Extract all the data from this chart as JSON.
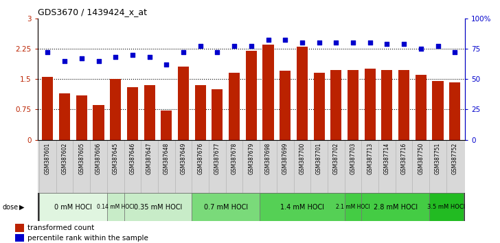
{
  "title": "GDS3670 / 1439424_x_at",
  "samples": [
    "GSM387601",
    "GSM387602",
    "GSM387605",
    "GSM387606",
    "GSM387645",
    "GSM387646",
    "GSM387647",
    "GSM387648",
    "GSM387649",
    "GSM387676",
    "GSM387677",
    "GSM387678",
    "GSM387679",
    "GSM387698",
    "GSM387699",
    "GSM387700",
    "GSM387701",
    "GSM387702",
    "GSM387703",
    "GSM387713",
    "GSM387714",
    "GSM387716",
    "GSM387750",
    "GSM387751",
    "GSM387752"
  ],
  "transformed_count": [
    1.55,
    1.15,
    1.1,
    0.85,
    1.5,
    1.3,
    1.35,
    0.72,
    1.8,
    1.35,
    1.25,
    1.65,
    2.2,
    2.35,
    1.7,
    2.3,
    1.65,
    1.72,
    1.72,
    1.75,
    1.72,
    1.72,
    1.6,
    1.45,
    1.42
  ],
  "percentile_rank": [
    72,
    65,
    67,
    65,
    68,
    70,
    68,
    62,
    72,
    77,
    72,
    77,
    77,
    82,
    82,
    80,
    80,
    80,
    80,
    80,
    79,
    79,
    75,
    77,
    72
  ],
  "dose_groups": [
    {
      "label": "0 mM HOCl",
      "start": 0,
      "end": 4,
      "color": "#e0f5e0"
    },
    {
      "label": "0.14 mM HOCl",
      "start": 4,
      "end": 5,
      "color": "#c8ecc8"
    },
    {
      "label": "0.35 mM HOCl",
      "start": 5,
      "end": 9,
      "color": "#c8ecc8"
    },
    {
      "label": "0.7 mM HOCl",
      "start": 9,
      "end": 13,
      "color": "#7ada7a"
    },
    {
      "label": "1.4 mM HOCl",
      "start": 13,
      "end": 18,
      "color": "#55d055"
    },
    {
      "label": "2.1 mM HOCl",
      "start": 18,
      "end": 19,
      "color": "#44cc44"
    },
    {
      "label": "2.8 mM HOCl",
      "start": 19,
      "end": 23,
      "color": "#44cc44"
    },
    {
      "label": "3.5 mM HOCl",
      "start": 23,
      "end": 25,
      "color": "#22bb22"
    }
  ],
  "bar_color": "#bb2200",
  "scatter_color": "#0000cc",
  "ylim_left": [
    0,
    3
  ],
  "ylim_right": [
    0,
    100
  ],
  "yticks_left": [
    0,
    0.75,
    1.5,
    2.25,
    3
  ],
  "yticks_right": [
    0,
    25,
    50,
    75,
    100
  ],
  "yticklabels_right": [
    "0",
    "25",
    "50",
    "75",
    "100%"
  ],
  "dotted_line_y": [
    0.75,
    1.5,
    2.25
  ],
  "plot_bg_color": "#ffffff",
  "tick_area_bg": "#d8d8d8"
}
